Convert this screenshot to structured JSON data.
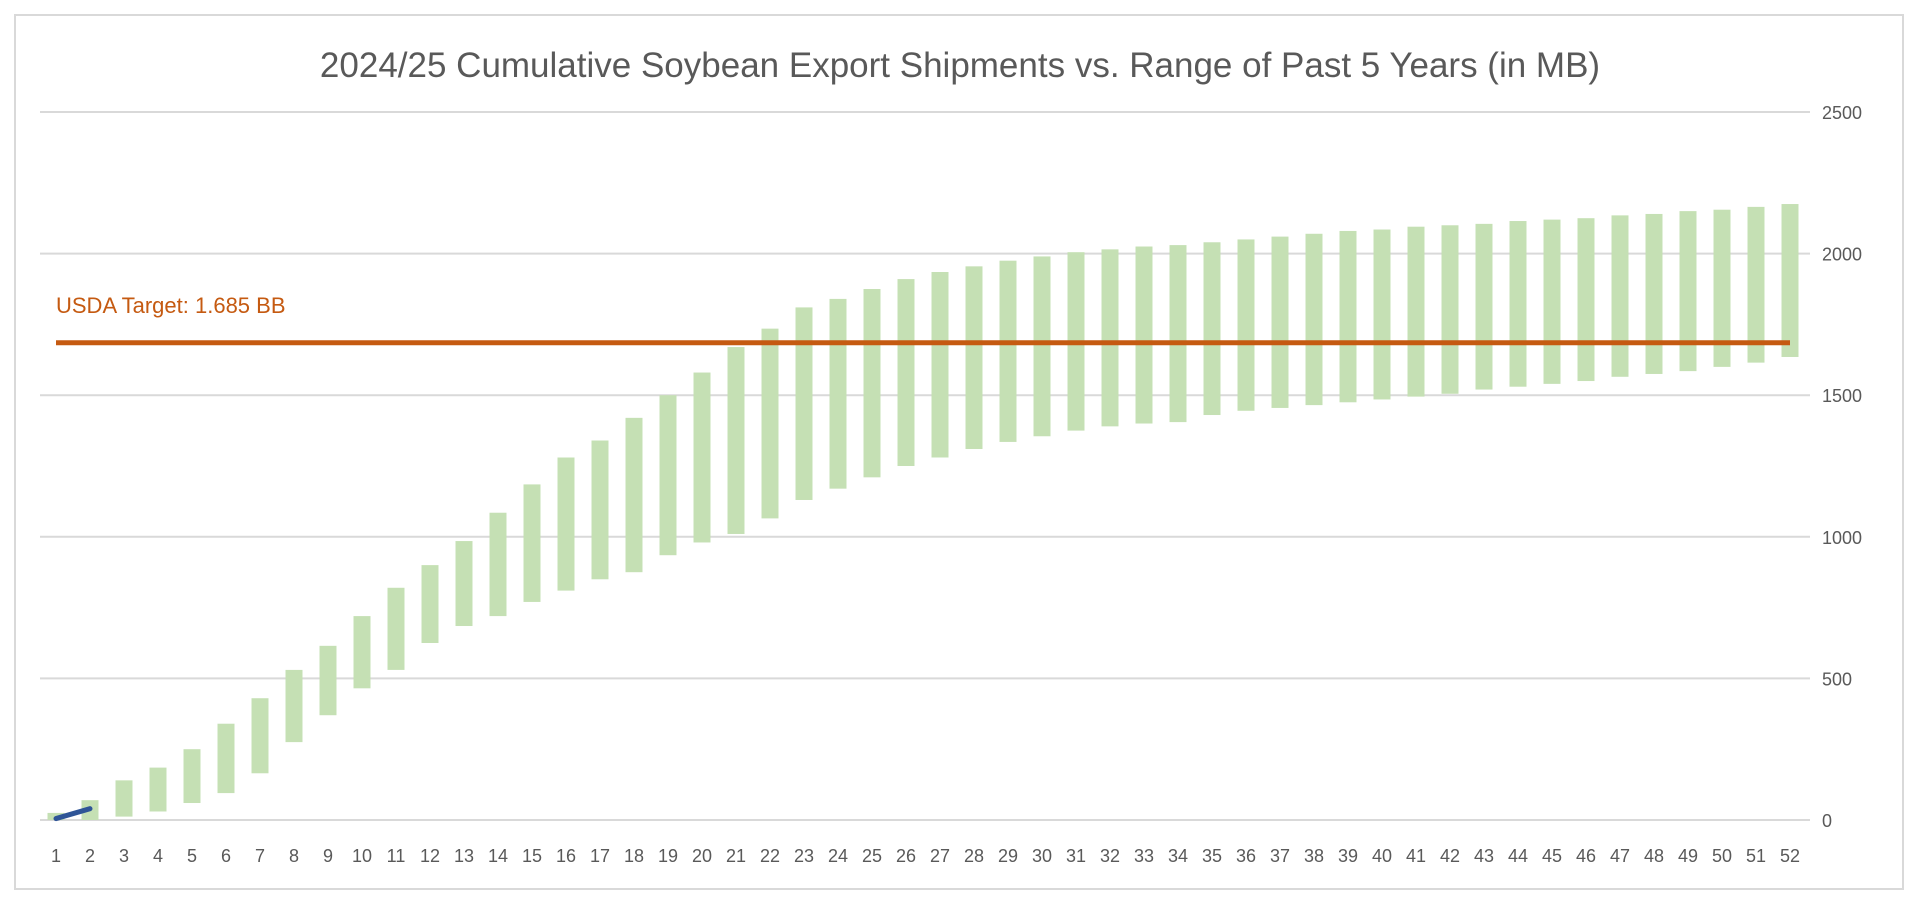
{
  "chart_data": {
    "type": "bar",
    "title": "2024/25 Cumulative Soybean Export Shipments vs. Range of Past 5 Years (in MB)",
    "xlabel": "",
    "ylabel": "",
    "ylim": [
      0,
      2500
    ],
    "yticks": [
      0,
      500,
      1000,
      1500,
      2000,
      2500
    ],
    "y_axis_side": "right",
    "grid": true,
    "legend": "none",
    "categories": [
      "1",
      "2",
      "3",
      "4",
      "5",
      "6",
      "7",
      "8",
      "9",
      "10",
      "11",
      "12",
      "13",
      "14",
      "15",
      "16",
      "17",
      "18",
      "19",
      "20",
      "21",
      "22",
      "23",
      "24",
      "25",
      "26",
      "27",
      "28",
      "29",
      "30",
      "31",
      "32",
      "33",
      "34",
      "35",
      "36",
      "37",
      "38",
      "39",
      "40",
      "41",
      "42",
      "43",
      "44",
      "45",
      "46",
      "47",
      "48",
      "49",
      "50",
      "51",
      "52"
    ],
    "range_low": [
      0,
      0,
      12,
      30,
      60,
      95,
      165,
      275,
      370,
      465,
      530,
      625,
      685,
      720,
      770,
      810,
      850,
      875,
      935,
      980,
      1010,
      1065,
      1130,
      1170,
      1210,
      1250,
      1280,
      1310,
      1335,
      1355,
      1375,
      1390,
      1400,
      1405,
      1430,
      1445,
      1455,
      1465,
      1475,
      1485,
      1495,
      1505,
      1520,
      1530,
      1540,
      1550,
      1565,
      1575,
      1585,
      1600,
      1615,
      1635
    ],
    "range_high": [
      25,
      70,
      140,
      185,
      250,
      340,
      430,
      530,
      615,
      720,
      820,
      900,
      985,
      1085,
      1185,
      1280,
      1340,
      1420,
      1500,
      1580,
      1670,
      1735,
      1810,
      1840,
      1875,
      1910,
      1935,
      1955,
      1975,
      1990,
      2005,
      2015,
      2025,
      2030,
      2040,
      2050,
      2060,
      2070,
      2080,
      2085,
      2095,
      2100,
      2105,
      2115,
      2120,
      2125,
      2135,
      2140,
      2150,
      2155,
      2165,
      2175
    ],
    "current_series": {
      "x": [
        "1",
        "2"
      ],
      "values": [
        5,
        40
      ]
    },
    "target": {
      "label": "USDA Target: 1.685 BB",
      "value": 1685
    },
    "colors": {
      "range": "#c5e0b4",
      "current": "#2f5597",
      "target": "#c55a11",
      "grid": "#d9d9d9",
      "text": "#595959"
    }
  }
}
